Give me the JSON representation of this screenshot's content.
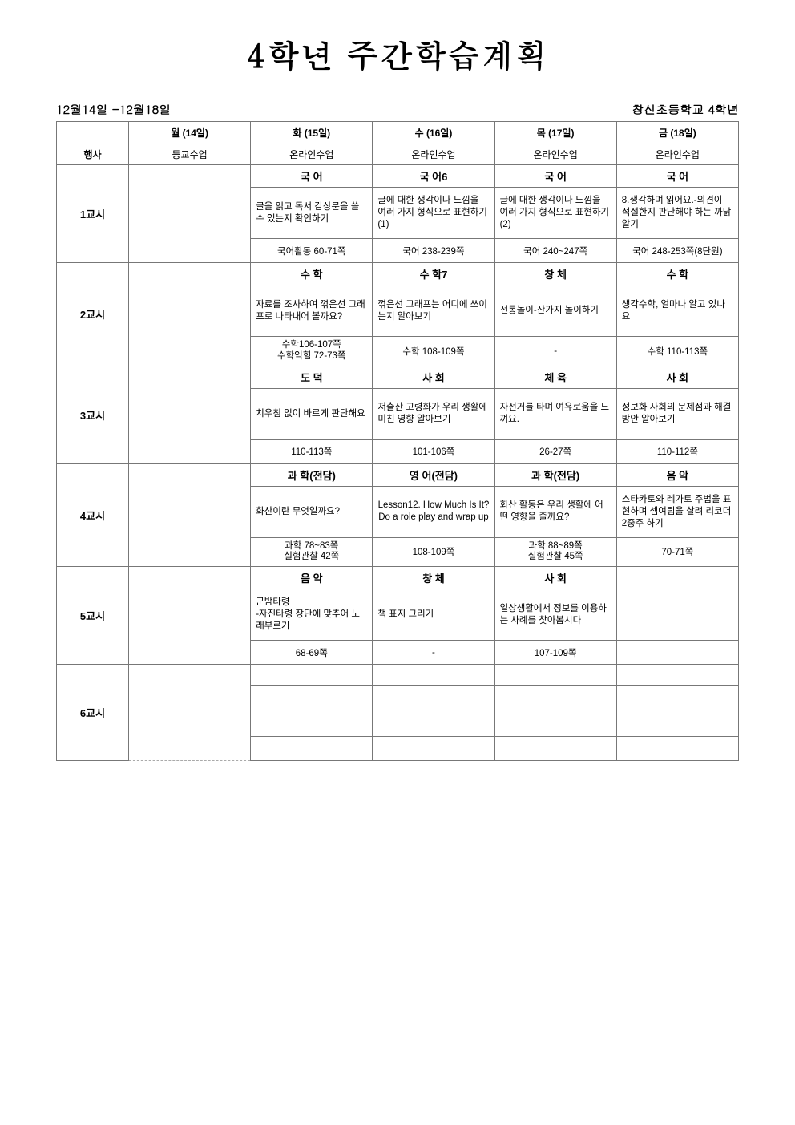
{
  "title": "4학년 주간학습계획",
  "date_range": "12월14일 -12월18일",
  "school": "창신초등학교 4학년",
  "headers": {
    "blank": "",
    "mon": "월 (14일)",
    "tue": "화 (15일)",
    "wed": "수 (16일)",
    "thu": "목 (17일)",
    "fri": "금 (18일)"
  },
  "event_row": {
    "label": "행사",
    "mon": "등교수업",
    "tue": "온라인수업",
    "wed": "온라인수업",
    "thu": "온라인수업",
    "fri": "온라인수업"
  },
  "periods": [
    {
      "label": "1교시",
      "subject": {
        "tue": "국 어",
        "wed": "국 어6",
        "thu": "국 어",
        "fri": "국 어"
      },
      "activity": {
        "tue": "글을 읽고 독서 감상문을 쓸 수 있는지 확인하기",
        "wed": "글에 대한 생각이나 느낌을 여러 가지 형식으로 표현하기(1)",
        "thu": "글에 대한 생각이나 느낌을 여러 가지 형식으로 표현하기(2)",
        "fri": "8.생각하며 읽어요.-의견이 적절한지 판단해야 하는 까닭 알기"
      },
      "pages": {
        "tue": "국어활동 60-71쪽",
        "wed": "국어 238-239쪽",
        "thu": "국어 240~247쪽",
        "fri": "국어 248-253쪽(8단원)"
      }
    },
    {
      "label": "2교시",
      "subject": {
        "tue": "수 학",
        "wed": "수 학7",
        "thu": "창 체",
        "fri": "수 학"
      },
      "activity": {
        "tue": "자료를 조사하여 꺾은선 그래프로 나타내어 볼까요?",
        "wed": "꺾은선 그래프는 어디에 쓰이는지 알아보기",
        "thu": "전통놀이-산가지 놀이하기",
        "fri": "생각수학, 얼마나 알고 있나요"
      },
      "pages": {
        "tue": "수학106-107쪽\n수학익힘 72-73쪽",
        "wed": "수학 108-109쪽",
        "thu": "-",
        "fri": "수학 110-113쪽"
      }
    },
    {
      "label": "3교시",
      "subject": {
        "tue": "도 덕",
        "wed": "사 회",
        "thu": "체 육",
        "fri": "사 회"
      },
      "activity": {
        "tue": "치우침 없이 바르게 판단해요",
        "wed": "저출산 고령화가 우리 생활에 미친 영향 알아보기",
        "thu": "자전거를 타며 여유로움을 느껴요.",
        "fri": "정보화 사회의 문제점과 해결방안 알아보기"
      },
      "pages": {
        "tue": "110-113쪽",
        "wed": "101-106쪽",
        "thu": "26-27쪽",
        "fri": "110-112쪽"
      }
    },
    {
      "label": "4교시",
      "subject": {
        "tue": "과 학(전담)",
        "wed": "영 어(전담)",
        "thu": "과 학(전담)",
        "fri": "음 악"
      },
      "activity": {
        "tue": "화산이란 무엇일까요?",
        "wed": "Lesson12. How Much Is It?\nDo a role play and wrap up",
        "thu": "화산 활동은 우리 생활에 어떤 영향을 줄까요?",
        "fri": "스타카토와 레가토 주법을 표현하며 셈여림을 살려 리코더 2중주 하기"
      },
      "pages": {
        "tue": "과학 78~83쪽\n실험관찰 42쪽",
        "wed": "108-109쪽",
        "thu": "과학 88~89쪽\n실험관찰 45쪽",
        "fri": "70-71쪽"
      }
    },
    {
      "label": "5교시",
      "subject": {
        "tue": "음 악",
        "wed": "창 체",
        "thu": "사 회",
        "fri": ""
      },
      "activity": {
        "tue": "군밤타령\n-자진타령 장단에 맞추어 노래부르기",
        "wed": "책 표지 그리기",
        "thu": "일상생활에서 정보를 이용하는 사례를 찾아봅시다",
        "fri": ""
      },
      "pages": {
        "tue": "68-69쪽",
        "wed": "-",
        "thu": "107-109쪽",
        "fri": ""
      }
    },
    {
      "label": "6교시",
      "subject": {
        "tue": "",
        "wed": "",
        "thu": "",
        "fri": ""
      },
      "activity": {
        "tue": "",
        "wed": "",
        "thu": "",
        "fri": ""
      },
      "pages": {
        "tue": "",
        "wed": "",
        "thu": "",
        "fri": ""
      }
    }
  ],
  "style": {
    "title_fontsize": 40,
    "meta_fontsize": 15,
    "header_fontsize": 13,
    "body_fontsize": 12,
    "border_color": "#777777",
    "dashed_color": "#aaaaaa",
    "background": "#ffffff"
  }
}
